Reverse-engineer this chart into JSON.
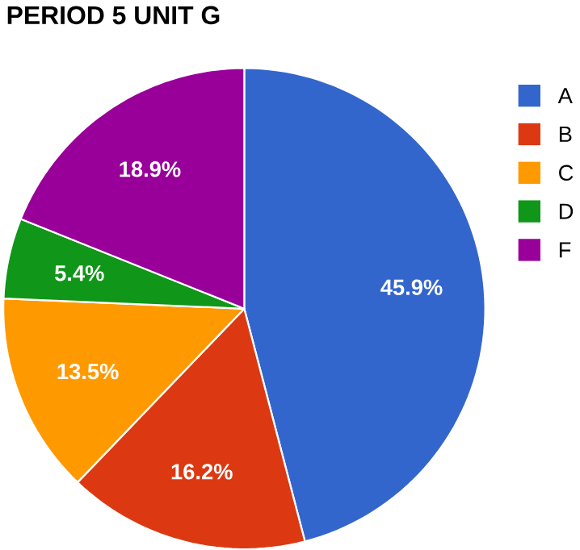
{
  "chart_data": {
    "type": "pie",
    "title": "PERIOD 5 UNIT G",
    "categories": [
      "A",
      "B",
      "C",
      "D",
      "F"
    ],
    "values": [
      45.9,
      16.2,
      13.5,
      5.4,
      18.9
    ],
    "value_labels": [
      "45.9%",
      "16.2%",
      "13.5%",
      "5.4%",
      "18.9%"
    ],
    "colors": [
      "#3366cc",
      "#dc3912",
      "#ff9900",
      "#109618",
      "#990099"
    ],
    "legend": "right"
  }
}
